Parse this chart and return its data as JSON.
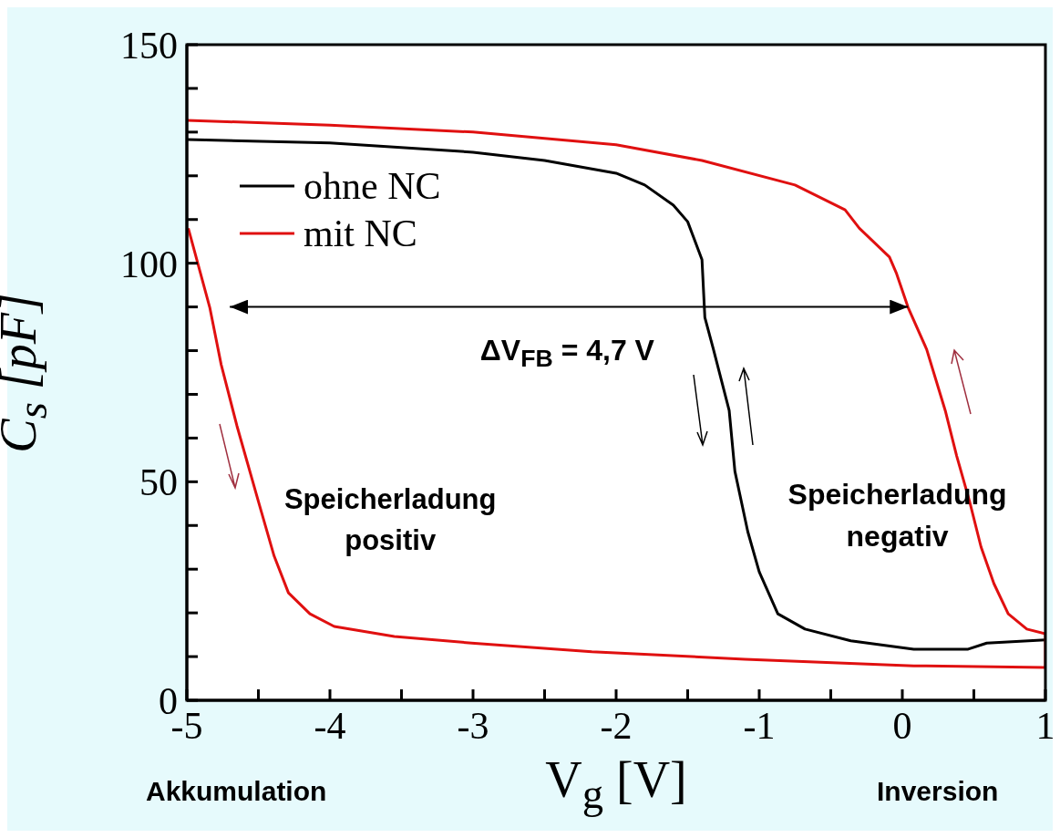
{
  "chart_data": {
    "type": "line",
    "xlabel": "V$_{g}$ [V]",
    "ylabel": "C$_{s}$ [pF]",
    "xlim": [
      -5,
      1
    ],
    "ylim": [
      0,
      150
    ],
    "xticks": [
      -5,
      {
        "value": -4.5,
        "label": null
      },
      -4,
      {
        "value": -3.5,
        "label": null
      },
      -3,
      {
        "value": -2.5,
        "label": null
      },
      -2,
      {
        "value": -1.5,
        "label": null
      },
      -1,
      {
        "value": -0.5,
        "label": null
      },
      0,
      {
        "value": 0.5,
        "label": null
      },
      1
    ],
    "yticks": [
      0,
      {
        "value": 10,
        "label": null
      },
      {
        "value": 20,
        "label": null
      },
      {
        "value": 30,
        "label": null
      },
      {
        "value": 40,
        "label": null
      },
      50,
      {
        "value": 60,
        "label": null
      },
      {
        "value": 70,
        "label": null
      },
      {
        "value": 80,
        "label": null
      },
      {
        "value": 90,
        "label": null
      },
      100,
      {
        "value": 110,
        "label": null
      },
      {
        "value": 120,
        "label": null
      },
      {
        "value": 130,
        "label": null
      },
      {
        "value": 140,
        "label": null
      },
      150
    ],
    "legend": "top left",
    "marker": "none",
    "line_style": "solid",
    "series": [
      {
        "name": "ohne NC",
        "color": "#000000",
        "x": [
          -5,
          -4,
          -3,
          -2.5,
          -2,
          -1.8,
          -1.6,
          -1.5,
          -1.4,
          -1.38,
          -1.32,
          -1.21,
          -1.17,
          -1.08,
          -1.0,
          -0.87,
          -0.68,
          -0.36,
          0.08,
          0.46,
          0.59,
          1.0
        ],
        "values": [
          128.3,
          127.5,
          125.4,
          123.5,
          120.6,
          117.9,
          113.3,
          109.5,
          100.8,
          87.6,
          80.3,
          66.3,
          52.4,
          38.6,
          29.4,
          19.8,
          16.3,
          13.6,
          11.7,
          11.7,
          13.1,
          13.8
        ]
      },
      {
        "name": "mit NC",
        "color": "#e01010",
        "x": [
          -5,
          -4,
          -3,
          -2,
          -1.4,
          -0.75,
          -0.4,
          -0.3,
          -0.09,
          -0.04,
          0.04,
          0.17,
          0.3,
          0.38,
          0.47,
          0.55,
          0.64,
          0.74,
          0.87,
          1.0,
          1.0,
          0.08,
          -1.1,
          -2.17,
          -3.01,
          -3.55,
          -3.97,
          -4.14,
          -4.29,
          -4.39,
          -4.5,
          -4.65,
          -4.76,
          -4.84,
          -4.99
        ],
        "values": [
          132.7,
          131.6,
          130.0,
          127.1,
          123.5,
          117.9,
          112.2,
          108,
          101.4,
          97.6,
          89.9,
          80.3,
          66.3,
          55.9,
          45.5,
          35.1,
          26.7,
          19.8,
          16.3,
          15.2,
          7.5,
          7.9,
          9.4,
          11.1,
          13.1,
          14.6,
          16.9,
          19.8,
          24.6,
          33,
          45.5,
          62.8,
          76.8,
          89.9,
          108
        ]
      }
    ],
    "annotations": [
      "ΔV$_{FB}$ = 4,7 V",
      "Speicherladung positiv",
      "Speicherladung negativ",
      "Akkumulation",
      "Inversion"
    ]
  }
}
